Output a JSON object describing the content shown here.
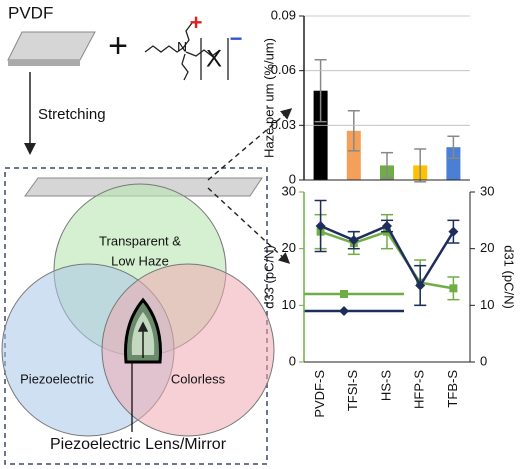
{
  "chart_data": [
    {
      "type": "bar",
      "ylabel": "Haze per um (%/um)",
      "categories": [
        null,
        null,
        null,
        null,
        null
      ],
      "values": [
        0.049,
        0.027,
        0.008,
        0.008,
        0.018
      ],
      "errors": [
        0.017,
        0.011,
        0.007,
        0.009,
        0.006
      ],
      "colors": [
        "#000000",
        "#f4a05a",
        "#70ad47",
        "#ffc000",
        "#4a7fd4"
      ],
      "ylim": [
        0,
        0.09
      ],
      "yticks": [
        0,
        0.03,
        0.06,
        0.09
      ],
      "grid": true
    },
    {
      "type": "line",
      "ylabel": "d33 (pC/N)",
      "y2label": "d31 (pC/N)",
      "categories": [
        "PVDF-S",
        "TFSI-S",
        "HS-S",
        "HFP-S",
        "TFB-S"
      ],
      "series": [
        {
          "color": "#70ad47",
          "marker": "square",
          "values": [
            23,
            21,
            23,
            14,
            13
          ],
          "errors": [
            3,
            2,
            3,
            4,
            2
          ]
        },
        {
          "color": "#1f2d5c",
          "marker": "diamond",
          "axis": "y2",
          "values": [
            24,
            21.5,
            24,
            13.5,
            23
          ],
          "errors": [
            4.5,
            1.5,
            1,
            3.5,
            2
          ]
        }
      ],
      "ylim": [
        0,
        30
      ],
      "yticks": [
        0,
        10,
        20,
        30
      ],
      "y2lim": [
        0,
        30
      ],
      "y2ticks": [
        0,
        10,
        20,
        30
      ]
    }
  ],
  "diagram": {
    "pvdf": "PVDF",
    "plus": "+",
    "ion": "X",
    "cation_charge": "+",
    "anion_charge": "−",
    "stretching": "Stretching",
    "circle_top_line1": "Transparent &",
    "circle_top_line2": "Low Haze",
    "circle_left": "Piezoelectric",
    "circle_right": "Colorless",
    "center_label": "Piezoelectric Lens/Mirror"
  }
}
